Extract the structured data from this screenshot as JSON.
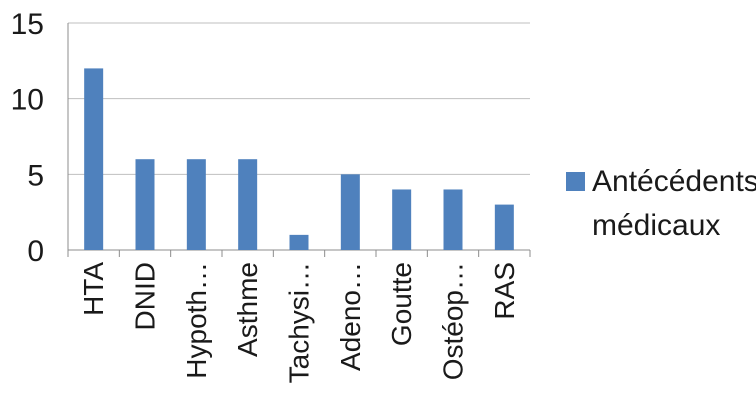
{
  "chart_data": {
    "type": "bar",
    "categories": [
      "HTA",
      "DNID",
      "Hypoth…",
      "Asthme",
      "Tachysi…",
      "Adeno…",
      "Goutte",
      "Ostéop…",
      "RAS"
    ],
    "series": [
      {
        "name": "Antécédents médicaux",
        "values": [
          12,
          6,
          6,
          6,
          1,
          5,
          4,
          4,
          3
        ],
        "color": "#4f81bd"
      }
    ],
    "yticks": [
      "0",
      "5",
      "10",
      "15"
    ],
    "ylim": [
      0,
      15
    ],
    "grid": true,
    "legend_position": "right",
    "title": "",
    "xlabel": "",
    "ylabel": ""
  }
}
